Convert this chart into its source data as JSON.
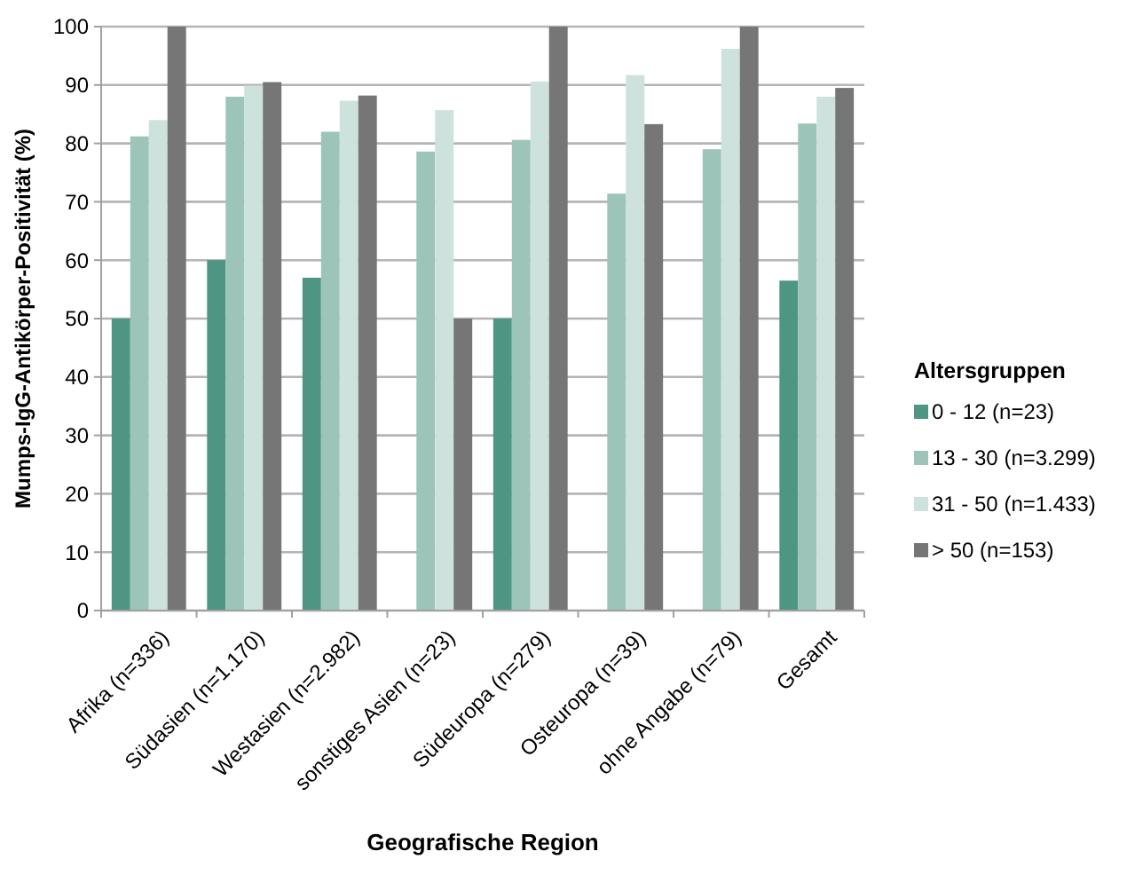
{
  "chart_data": {
    "type": "bar",
    "xlabel": "Geografische Region",
    "ylabel": "Mumps-IgG-Antikörper-Positivität (%)",
    "legend_title": "Altersgruppen",
    "legend": "right",
    "categories": [
      "Afrika (n=336)",
      "Südasien (n=1.170)",
      "Westasien (n=2.982)",
      "sonstiges Asien (n=23)",
      "Südeuropa (n=279)",
      "Osteuropa (n=39)",
      "ohne Angabe (n=79)",
      "Gesamt"
    ],
    "series": [
      {
        "name": "0 - 12 (n=23)",
        "color": "#4e9583",
        "values": [
          50,
          60,
          57,
          null,
          50,
          null,
          null,
          56.5
        ]
      },
      {
        "name": "13 - 30 (n=3.299)",
        "color": "#9cc4b9",
        "values": [
          81.2,
          88,
          82,
          78.6,
          80.6,
          71.4,
          79,
          83.4
        ]
      },
      {
        "name": "31 - 50 (n=1.433)",
        "color": "#cde2dc",
        "values": [
          84,
          89.9,
          87.3,
          85.7,
          90.6,
          91.7,
          96.2,
          88
        ]
      },
      {
        "name": "> 50 (n=153)",
        "color": "#767676",
        "values": [
          100,
          90.5,
          88.2,
          50,
          100,
          83.3,
          100,
          89.5
        ]
      }
    ],
    "ylim": [
      0,
      100
    ],
    "yticks": [
      0,
      10,
      20,
      30,
      40,
      50,
      60,
      70,
      80,
      90,
      100
    ],
    "grid": "y"
  }
}
